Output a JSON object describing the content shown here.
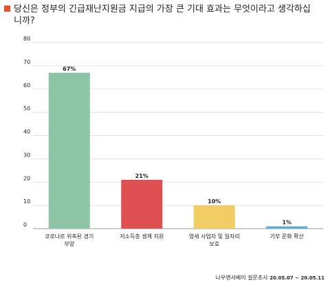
{
  "title": "당신은 정부의 긴급재난지원금 지급의 가장 큰 기대 효과는 무엇이라고 생각하십니까?",
  "colors": {
    "title_marker": "#e8532a",
    "grid": "#d9d9d9",
    "axis": "#999999"
  },
  "chart_data": {
    "type": "bar",
    "categories": [
      [
        "코로나로 위축된 경기",
        "부양"
      ],
      [
        "저소득층 생계 지원"
      ],
      [
        "영세 사업자 및 일자리",
        "보호"
      ],
      [
        "기부 문화 확산"
      ]
    ],
    "values": [
      67,
      21,
      10,
      1
    ],
    "value_labels": [
      "67%",
      "21%",
      "10%",
      "1%"
    ],
    "bar_colors": [
      "#8ec4a6",
      "#dd4f50",
      "#f2cd64",
      "#5aaed6"
    ],
    "ylim": [
      0,
      80
    ],
    "yticks": [
      0,
      10,
      20,
      30,
      40,
      50,
      60,
      70,
      80
    ],
    "grid": true,
    "xlabel": "",
    "ylabel": ""
  },
  "source": {
    "name": "나우앤서베이 설문조사",
    "dates": "20.05.07 ~ 20.05.11"
  }
}
